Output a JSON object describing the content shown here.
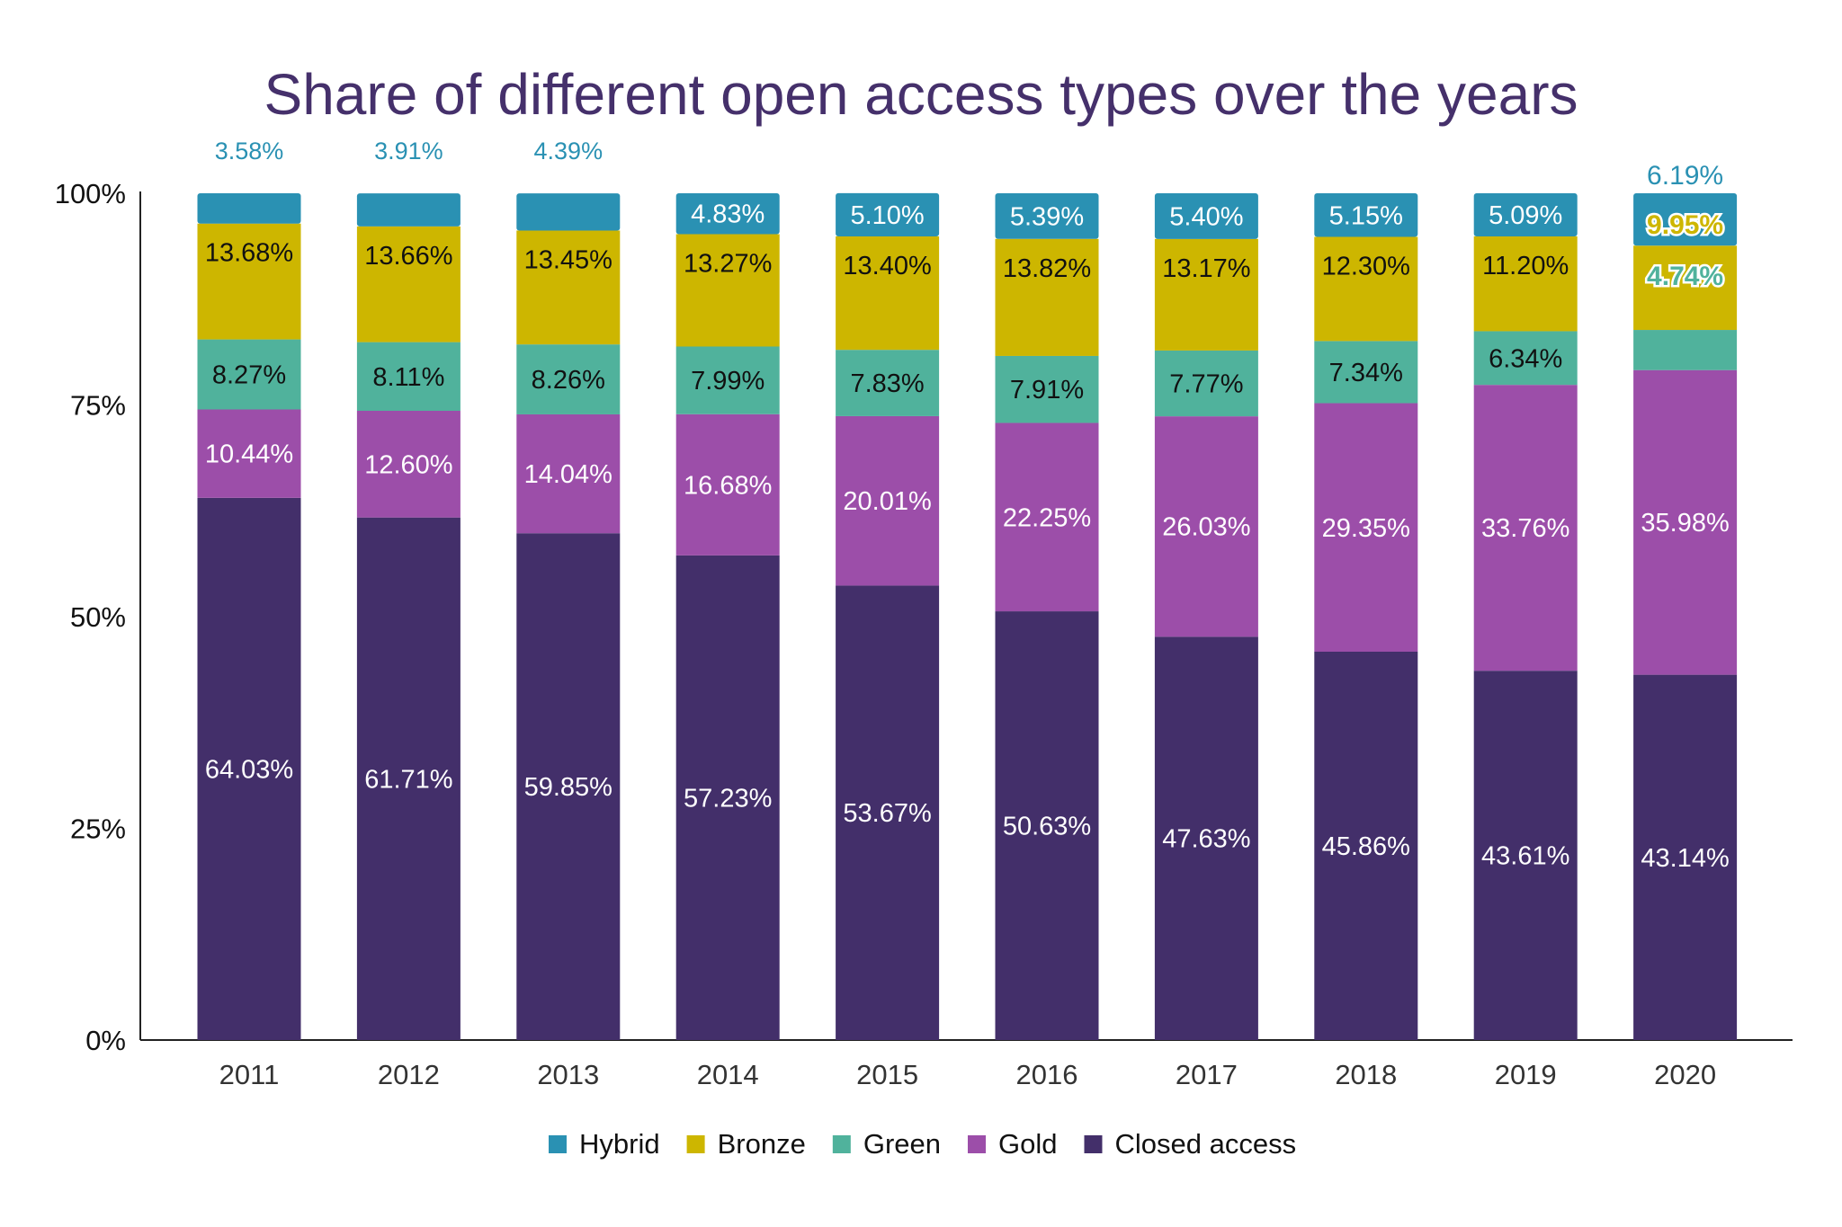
{
  "chart_data": {
    "type": "bar",
    "stacked": true,
    "title": "Share of different open access types over the years",
    "xlabel": "",
    "ylabel": "",
    "ylim": [
      0,
      100
    ],
    "yticks": [
      "0%",
      "25%",
      "50%",
      "75%",
      "100%"
    ],
    "grid": false,
    "legend_position": "bottom",
    "categories": [
      "2011",
      "2012",
      "2013",
      "2014",
      "2015",
      "2016",
      "2017",
      "2018",
      "2019",
      "2020"
    ],
    "series": [
      {
        "name": "Closed access",
        "color": "#432f6a",
        "values": [
          64.03,
          61.71,
          59.85,
          57.23,
          53.67,
          50.63,
          47.63,
          45.86,
          43.61,
          43.14
        ]
      },
      {
        "name": "Gold",
        "color": "#9c4ea9",
        "values": [
          10.44,
          12.6,
          14.04,
          16.68,
          20.01,
          22.25,
          26.03,
          29.35,
          33.76,
          35.98
        ]
      },
      {
        "name": "Green",
        "color": "#50b29c",
        "values": [
          8.27,
          8.11,
          8.26,
          7.99,
          7.83,
          7.91,
          7.77,
          7.34,
          6.34,
          4.74
        ]
      },
      {
        "name": "Bronze",
        "color": "#cdb600",
        "values": [
          13.68,
          13.66,
          13.45,
          13.27,
          13.4,
          13.82,
          13.17,
          12.3,
          11.2,
          9.95
        ]
      },
      {
        "name": "Hybrid",
        "color": "#2a91b3",
        "values": [
          3.58,
          3.91,
          4.39,
          4.83,
          5.1,
          5.39,
          5.4,
          5.15,
          5.09,
          6.19
        ]
      }
    ],
    "legend_order": [
      "Hybrid",
      "Bronze",
      "Green",
      "Gold",
      "Closed access"
    ]
  }
}
